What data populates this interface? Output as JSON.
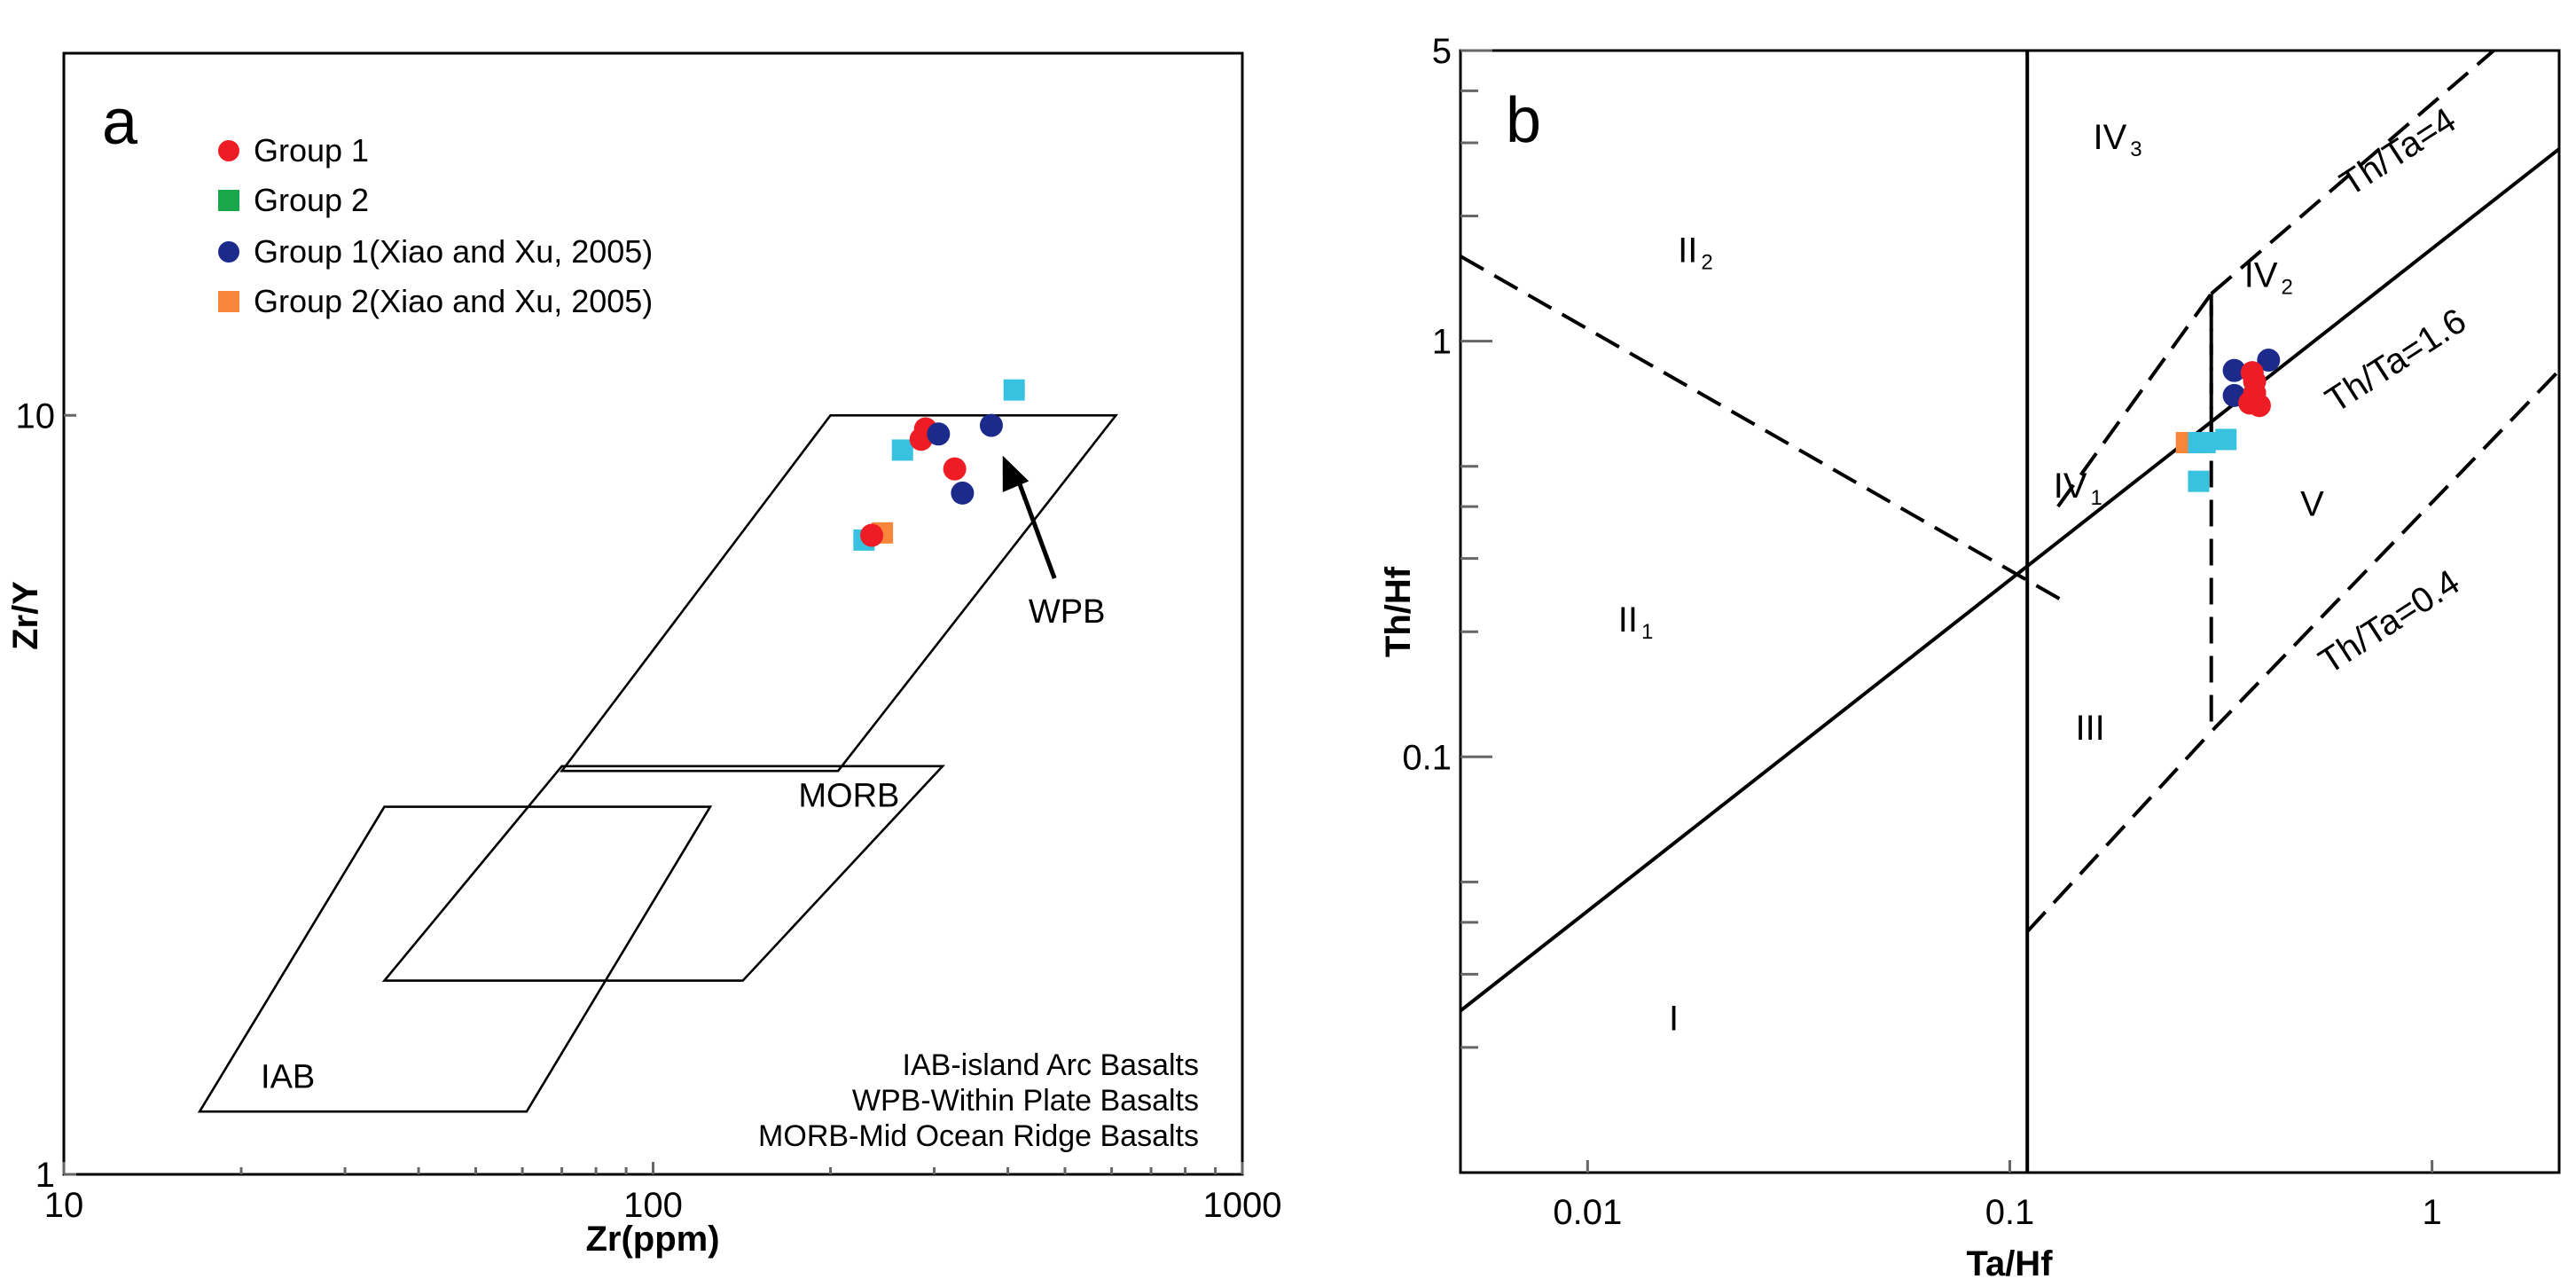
{
  "colors": {
    "group1": "#ee1c25",
    "group2": "#1aa64b",
    "group1_xiao": "#1c2a8c",
    "group2_xiao": "#f7863a",
    "extra": "#38c2e0"
  },
  "chart_data": [
    {
      "type": "scatter",
      "panel_label": "a",
      "xlabel": "Zr(ppm)",
      "ylabel": "Zr/Y",
      "xscale": "log",
      "yscale": "log",
      "xlim": [
        10,
        1000
      ],
      "ylim": [
        1,
        30
      ],
      "x_ticks": [
        {
          "value": 10,
          "label": "10"
        },
        {
          "value": 100,
          "label": "100"
        },
        {
          "value": 1000,
          "label": "1000"
        }
      ],
      "y_ticks": [
        {
          "value": 1,
          "label": "1"
        },
        {
          "value": 10,
          "label": "10"
        }
      ],
      "legend": {
        "placement": "top-left",
        "entries": [
          {
            "name": "Group 1",
            "marker": "circle",
            "color_key": "group1"
          },
          {
            "name": "Group 2",
            "marker": "square",
            "color_key": "group2"
          },
          {
            "name": "Group 1(Xiao and Xu, 2005)",
            "marker": "circle",
            "color_key": "group1_xiao"
          },
          {
            "name": "Group 2(Xiao and Xu, 2005)",
            "marker": "square",
            "color_key": "group2_xiao"
          }
        ]
      },
      "fields": [
        {
          "name": "WPB",
          "label": "WPB",
          "polygon": [
            [
              200,
              10
            ],
            [
              610,
              10
            ],
            [
              206,
              3.4
            ],
            [
              70,
              3.4
            ]
          ]
        },
        {
          "name": "MORB",
          "label": "MORB",
          "polygon": [
            [
              70,
              3.45
            ],
            [
              310,
              3.45
            ],
            [
              142,
              1.8
            ],
            [
              35,
              1.8
            ]
          ]
        },
        {
          "name": "IAB",
          "label": "IAB",
          "polygon": [
            [
              35,
              3.05
            ],
            [
              125,
              3.05
            ],
            [
              61,
              1.21
            ],
            [
              17,
              1.21
            ]
          ]
        }
      ],
      "arrow": {
        "label": "WPB",
        "from": [
          480,
          6.1
        ],
        "to": [
          392,
          8.85
        ]
      },
      "notes": [
        "IAB-island Arc Basalts",
        "WPB-Within Plate Basalts",
        "MORB-Mid Ocean Ridge Basalts"
      ],
      "series": [
        {
          "name": "Group 1",
          "marker": "circle",
          "color_key": "group1",
          "points": [
            [
              290,
              9.6
            ],
            [
              285,
              9.3
            ],
            [
              325,
              8.5
            ],
            [
              235,
              6.95
            ]
          ]
        },
        {
          "name": "Group 1(Xiao and Xu, 2005)",
          "marker": "circle",
          "color_key": "group1_xiao",
          "points": [
            [
              305,
              9.45
            ],
            [
              375,
              9.7
            ],
            [
              335,
              7.9
            ]
          ]
        },
        {
          "name": "Group 2(Xiao and Xu, 2005)",
          "marker": "square",
          "color_key": "group2_xiao",
          "points": [
            [
              245,
              7.0
            ]
          ]
        },
        {
          "name": "Unlabeled cyan",
          "marker": "square",
          "color_key": "extra",
          "points": [
            [
              410,
              10.8
            ],
            [
              265,
              9.0
            ],
            [
              228,
              6.85
            ]
          ]
        }
      ]
    },
    {
      "type": "scatter",
      "panel_label": "b",
      "xlabel": "Ta/Hf",
      "ylabel": "Th/Hf",
      "xscale": "log",
      "yscale": "log",
      "xlim": [
        0.005,
        2.0
      ],
      "ylim": [
        0.01,
        5
      ],
      "x_ticks": [
        {
          "value": 0.01,
          "label": "0.01"
        },
        {
          "value": 0.1,
          "label": "0.1"
        },
        {
          "value": 1,
          "label": "1"
        }
      ],
      "y_ticks": [
        {
          "value": 0.1,
          "label": "0.1"
        },
        {
          "value": 1,
          "label": "1"
        },
        {
          "value": 5,
          "label": "5"
        }
      ],
      "lines": [
        {
          "style": "solid",
          "points": [
            [
              0.11,
              0.01
            ],
            [
              0.11,
              5
            ]
          ]
        },
        {
          "style": "solid",
          "points": [
            [
              0.005,
              0.0245
            ],
            [
              2.0,
              2.9
            ]
          ]
        },
        {
          "style": "dashed",
          "points": [
            [
              0.005,
              1.6
            ],
            [
              0.135,
              0.236
            ]
          ]
        },
        {
          "style": "dashed",
          "points": [
            [
              0.13,
              0.4
            ],
            [
              0.3,
              1.3
            ],
            [
              0.3,
              0.115
            ],
            [
              2.0,
              0.85
            ]
          ]
        },
        {
          "style": "dashed",
          "points": [
            [
              0.3,
              1.3
            ],
            [
              1.4,
              5
            ]
          ]
        },
        {
          "style": "dashed",
          "points": [
            [
              0.11,
              0.038
            ],
            [
              0.3,
              0.115
            ]
          ]
        },
        {
          "style": "dashed",
          "points": [
            [
              0.3,
              0.6
            ],
            [
              0.3,
              1.3
            ]
          ]
        }
      ],
      "regions": [
        {
          "label": "I",
          "x": 0.016,
          "y": 0.022
        },
        {
          "label": "II",
          "sub": "1",
          "x": 0.013,
          "y": 0.2
        },
        {
          "label": "II",
          "sub": "2",
          "x": 0.018,
          "y": 1.55
        },
        {
          "label": "III",
          "x": 0.155,
          "y": 0.11
        },
        {
          "label": "IV",
          "sub": "1",
          "x": 0.145,
          "y": 0.42
        },
        {
          "label": "IV",
          "sub": "2",
          "x": 0.41,
          "y": 1.35
        },
        {
          "label": "IV",
          "sub": "3",
          "x": 0.18,
          "y": 2.9
        },
        {
          "label": "V",
          "x": 0.52,
          "y": 0.38
        }
      ],
      "line_labels": [
        {
          "text": "Th/Ta=4",
          "x": 0.86,
          "y": 2.7,
          "angle": -33
        },
        {
          "text": "Th/Ta=1.6",
          "x": 0.85,
          "y": 0.85,
          "angle": -33
        },
        {
          "text": "Th/Ta=0.4",
          "x": 0.82,
          "y": 0.2,
          "angle": -33
        }
      ],
      "series": [
        {
          "name": "Group 1",
          "marker": "circle",
          "color_key": "group1",
          "points": [
            [
              0.37,
              0.71
            ],
            [
              0.38,
              0.75
            ],
            [
              0.38,
              0.8
            ],
            [
              0.375,
              0.84
            ],
            [
              0.39,
              0.7
            ]
          ]
        },
        {
          "name": "Group 1(Xiao and Xu, 2005)",
          "marker": "circle",
          "color_key": "group1_xiao",
          "points": [
            [
              0.34,
              0.85
            ],
            [
              0.34,
              0.74
            ],
            [
              0.41,
              0.9
            ]
          ]
        },
        {
          "name": "Group 2(Xiao and Xu, 2005)",
          "marker": "square",
          "color_key": "group2_xiao",
          "points": [
            [
              0.262,
              0.57
            ]
          ]
        },
        {
          "name": "Unlabeled cyan",
          "marker": "square",
          "color_key": "extra",
          "points": [
            [
              0.28,
              0.57
            ],
            [
              0.29,
              0.57
            ],
            [
              0.325,
              0.58
            ],
            [
              0.28,
              0.46
            ]
          ]
        }
      ]
    }
  ]
}
